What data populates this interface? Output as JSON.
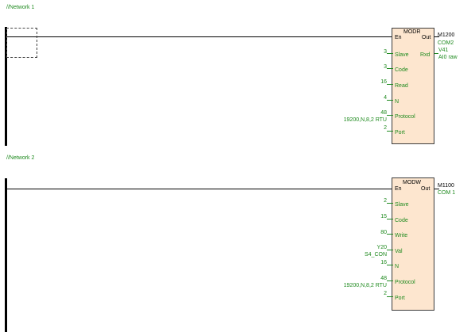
{
  "networks": [
    {
      "title": "//Network 1",
      "block": {
        "name": "MODR",
        "en_label": "En",
        "out_label": "Out",
        "output_address": "M1200",
        "output_comment": "COM2",
        "side_outputs": [
          {
            "pin": "Rxd",
            "address": "V41",
            "comment": "AI0 raw"
          }
        ],
        "inputs": [
          {
            "pin": "Slave",
            "value": "3",
            "comment": ""
          },
          {
            "pin": "Code",
            "value": "3",
            "comment": ""
          },
          {
            "pin": "Read",
            "value": "16",
            "comment": ""
          },
          {
            "pin": "N",
            "value": "4",
            "comment": ""
          },
          {
            "pin": "Protocol",
            "value": "48",
            "comment": "19200,N,8,2 RTU"
          },
          {
            "pin": "Port",
            "value": "2",
            "comment": ""
          }
        ]
      }
    },
    {
      "title": "//Network 2",
      "block": {
        "name": "MODW",
        "en_label": "En",
        "out_label": "Out",
        "output_address": "M1100",
        "output_comment": "COM 1",
        "side_outputs": [],
        "inputs": [
          {
            "pin": "Slave",
            "value": "2",
            "comment": ""
          },
          {
            "pin": "Code",
            "value": "15",
            "comment": ""
          },
          {
            "pin": "Write",
            "value": "80",
            "comment": ""
          },
          {
            "pin": "Val",
            "value": "Y20",
            "comment": "S4_CON"
          },
          {
            "pin": "N",
            "value": "16",
            "comment": ""
          },
          {
            "pin": "Protocol",
            "value": "48",
            "comment": "19200,N,8,2 RTU"
          },
          {
            "pin": "Port",
            "value": "2",
            "comment": ""
          }
        ]
      }
    }
  ],
  "colors": {
    "block_fill": "#fde6cf",
    "accent_text": "#1e8a1e",
    "rail": "#000000"
  }
}
